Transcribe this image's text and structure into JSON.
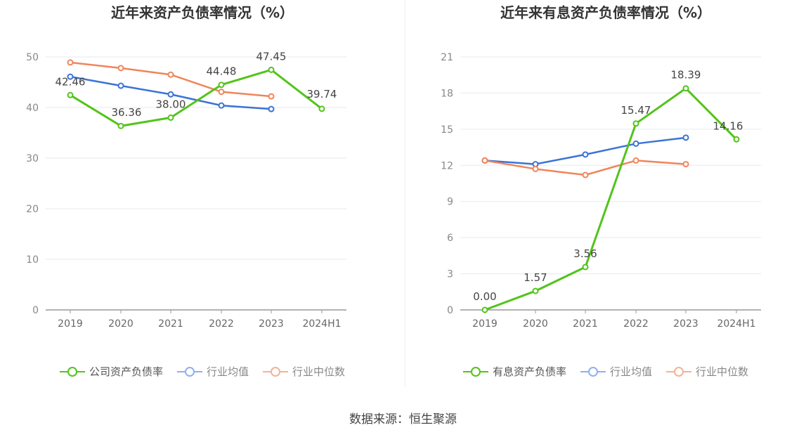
{
  "chart_data": [
    {
      "type": "line",
      "title": "近年来资产负债率情况（%）",
      "categories": [
        "2019",
        "2020",
        "2021",
        "2022",
        "2023",
        "2024H1"
      ],
      "ylim": [
        0,
        50
      ],
      "yticks": [
        0,
        10,
        20,
        30,
        40,
        50
      ],
      "grid": true,
      "legend_position": "bottom",
      "series": [
        {
          "name": "公司资产负债率",
          "color": "#52c41a",
          "values": [
            42.46,
            36.36,
            38.0,
            44.48,
            47.45,
            39.74
          ],
          "labels": [
            "42.46",
            "36.36",
            "38.00",
            "44.48",
            "47.45",
            "39.74"
          ],
          "legend_active": true
        },
        {
          "name": "行业均值",
          "color": "#3b73d8",
          "values": [
            46.1,
            44.3,
            42.6,
            40.4,
            39.7,
            null
          ],
          "legend_active": false
        },
        {
          "name": "行业中位数",
          "color": "#f0855a",
          "values": [
            48.9,
            47.8,
            46.5,
            43.1,
            42.2,
            null
          ],
          "legend_active": false
        }
      ]
    },
    {
      "type": "line",
      "title": "近年来有息资产负债率情况（%）",
      "categories": [
        "2019",
        "2020",
        "2021",
        "2022",
        "2023",
        "2024H1"
      ],
      "ylim": [
        0,
        21
      ],
      "yticks": [
        0,
        3,
        6,
        9,
        12,
        15,
        18,
        21
      ],
      "grid": true,
      "legend_position": "bottom",
      "series": [
        {
          "name": "有息资产负债率",
          "color": "#52c41a",
          "values": [
            0.0,
            1.57,
            3.56,
            15.47,
            18.39,
            14.16
          ],
          "labels": [
            "0.00",
            "1.57",
            "3.56",
            "15.47",
            "18.39",
            "14.16"
          ],
          "legend_active": true
        },
        {
          "name": "行业均值",
          "color": "#3b73d8",
          "values": [
            12.4,
            12.1,
            12.9,
            13.8,
            14.3,
            null
          ],
          "legend_active": false
        },
        {
          "name": "行业中位数",
          "color": "#f0855a",
          "values": [
            12.4,
            11.7,
            11.2,
            12.4,
            12.1,
            null
          ],
          "legend_active": false
        }
      ]
    }
  ],
  "source_text": "数据来源：恒生聚源",
  "colors": {
    "axis": "#999999",
    "grid": "#e6e9f2",
    "tick_text": "#888888",
    "label_text": "#444444"
  }
}
